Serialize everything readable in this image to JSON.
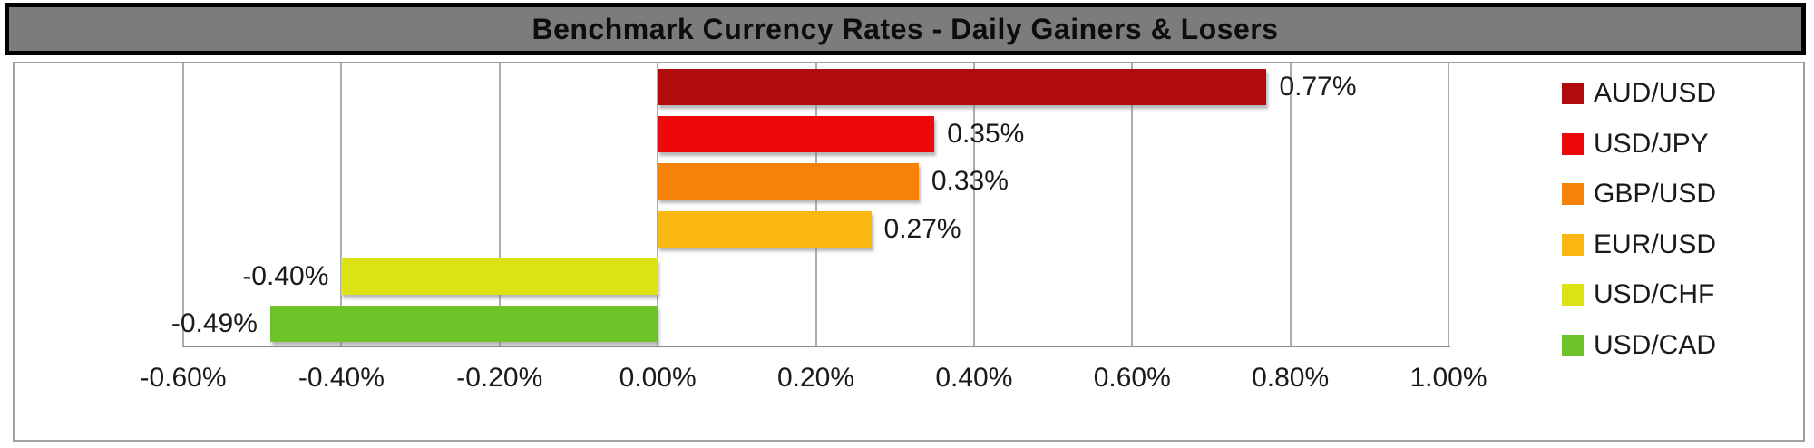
{
  "title": "Benchmark Currency Rates - Daily Gainers & Losers",
  "chart_data": {
    "type": "bar",
    "orientation": "horizontal",
    "title": "Benchmark Currency Rates - Daily Gainers & Losers",
    "categories": [
      "AUD/USD",
      "USD/JPY",
      "GBP/USD",
      "EUR/USD",
      "USD/CHF",
      "USD/CAD"
    ],
    "values": [
      0.77,
      0.35,
      0.33,
      0.27,
      -0.4,
      -0.49
    ],
    "value_labels": [
      "0.77%",
      "0.35%",
      "0.33%",
      "0.27%",
      "-0.40%",
      "-0.49%"
    ],
    "bar_colors": [
      "#b00c0c",
      "#ed0909",
      "#f68208",
      "#fbb813",
      "#dbe314",
      "#6cc32a"
    ],
    "x_ticks": [
      -0.6,
      -0.4,
      -0.2,
      0.0,
      0.2,
      0.4,
      0.6,
      0.8,
      1.0
    ],
    "x_tick_labels": [
      "-0.60%",
      "-0.40%",
      "-0.20%",
      "0.00%",
      "0.20%",
      "0.40%",
      "0.60%",
      "0.80%",
      "1.00%"
    ],
    "xlim": [
      -0.6,
      1.0
    ],
    "grid": true,
    "legend_position": "right",
    "legend": [
      {
        "label": "AUD/USD",
        "color": "#b00c0c"
      },
      {
        "label": "USD/JPY",
        "color": "#ed0909"
      },
      {
        "label": "GBP/USD",
        "color": "#f68208"
      },
      {
        "label": "EUR/USD",
        "color": "#fbb813"
      },
      {
        "label": "USD/CHF",
        "color": "#dbe314"
      },
      {
        "label": "USD/CAD",
        "color": "#6cc32a"
      }
    ],
    "colors": {
      "title_bar_bg": "#7c7c7c",
      "title_bar_border": "#000000",
      "chart_box_border": "#a0a0a0",
      "gridline": "#adadad",
      "axis_line": "#8c8c8c",
      "text": "#1a1a1a",
      "background": "#ffffff"
    }
  }
}
